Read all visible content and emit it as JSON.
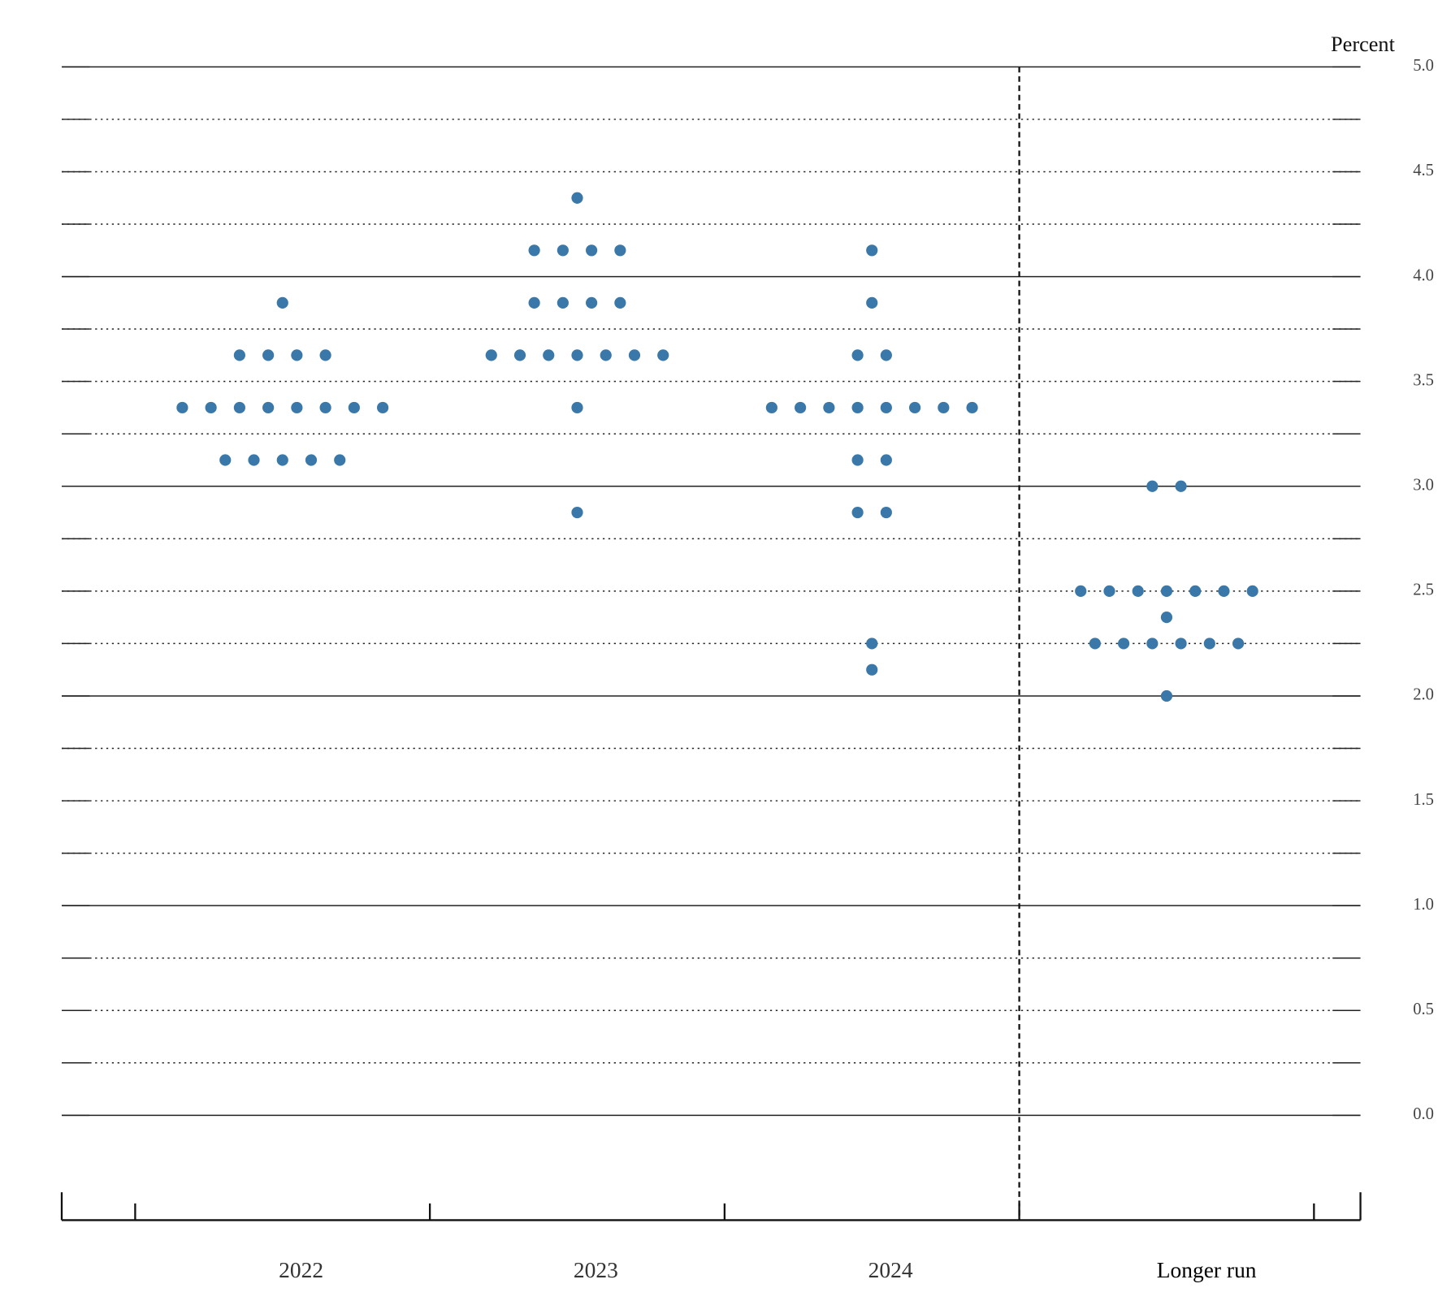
{
  "chart_data": {
    "type": "dot",
    "title": "Percent",
    "categories": [
      "2022",
      "2023",
      "2024",
      "Longer run"
    ],
    "values": [
      [
        3.875,
        3.625,
        3.625,
        3.625,
        3.625,
        3.375,
        3.375,
        3.375,
        3.375,
        3.375,
        3.375,
        3.375,
        3.375,
        3.125,
        3.125,
        3.125,
        3.125,
        3.125
      ],
      [
        4.375,
        4.125,
        4.125,
        4.125,
        4.125,
        3.875,
        3.875,
        3.875,
        3.875,
        3.625,
        3.625,
        3.625,
        3.625,
        3.625,
        3.625,
        3.625,
        3.375,
        2.875
      ],
      [
        4.125,
        3.875,
        3.625,
        3.625,
        3.375,
        3.375,
        3.375,
        3.375,
        3.375,
        3.375,
        3.375,
        3.375,
        3.125,
        3.125,
        2.875,
        2.875,
        2.25,
        2.125
      ],
      [
        3.0,
        3.0,
        2.5,
        2.5,
        2.5,
        2.5,
        2.5,
        2.5,
        2.5,
        2.375,
        2.25,
        2.25,
        2.25,
        2.25,
        2.25,
        2.25,
        2.0
      ]
    ],
    "color": "#3b78aa",
    "ylim": [
      -0.5,
      5.0
    ],
    "yticks": [
      {
        "value": 0,
        "label": "0.0"
      },
      0.5,
      {
        "value": 1,
        "label": "1.0"
      },
      1.5,
      {
        "value": 2,
        "label": "2.0"
      },
      2.5,
      {
        "value": 3,
        "label": "3.0"
      },
      3.5,
      {
        "value": 4,
        "label": "4.0"
      },
      4.5,
      {
        "value": 5,
        "label": "5.0"
      }
    ],
    "minor_yticks": [
      0.25,
      0.75,
      1.25,
      1.75,
      2.25,
      2.75,
      3.25,
      3.75,
      4.25,
      4.75
    ],
    "grid": true
  }
}
